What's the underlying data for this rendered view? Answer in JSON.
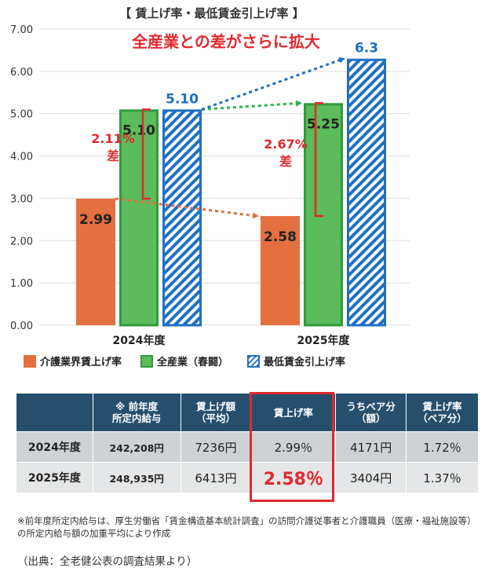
{
  "chart_data": {
    "type": "bar",
    "title": "【 賃上げ率・最低賃金引上げ率 】",
    "subtitle": "全産業との差がさらに拡大",
    "categories": [
      "2024年度",
      "2025年度"
    ],
    "ylim": [
      0,
      7
    ],
    "yticks": [
      "0.00",
      "1.00",
      "2.00",
      "3.00",
      "4.00",
      "5.00",
      "6.00",
      "7.00"
    ],
    "grid": true,
    "legend_position": "bottom",
    "series": [
      {
        "name": "介護業界賃上げ率",
        "color": "#e46f3f",
        "values": [
          2.99,
          2.58
        ],
        "labels": [
          "2.99",
          "2.58"
        ]
      },
      {
        "name": "全産業（春闘）",
        "color": "#5cbb5a",
        "values": [
          5.1,
          5.25
        ],
        "labels": [
          "5.10",
          "5.25"
        ]
      },
      {
        "name": "最低賃金引上げ率",
        "color": "#1f6fc5",
        "values": [
          5.1,
          6.3
        ],
        "labels": [
          "5.10",
          "6.3"
        ]
      }
    ],
    "annotations": [
      {
        "category": "2024年度",
        "text_line1": "2.11%",
        "text_line2": "差"
      },
      {
        "category": "2025年度",
        "text_line1": "2.67%",
        "text_line2": "差"
      }
    ]
  },
  "table": {
    "headers": [
      "",
      "※ 前年度\n所定内給与",
      "賃上げ額\n（平均）",
      "賃上げ率",
      "うちベア分\n（額）",
      "賃上げ率\n（ベア分）"
    ],
    "rows": [
      [
        "2024年度",
        "242,208円",
        "7236円",
        "2.99％",
        "4171円",
        "1.72％"
      ],
      [
        "2025年度",
        "248,935円",
        "6413円",
        "2.58％",
        "3404円",
        "1.37％"
      ]
    ]
  },
  "note": "※前年度所定内給与は、厚生労働省「賃金構造基本統計調査」の訪問介護従事者と介護職員（医療・福祉施設等）の所定内給与額の加重平均により作成",
  "source": "（出典：全老健公表の調査結果より）"
}
